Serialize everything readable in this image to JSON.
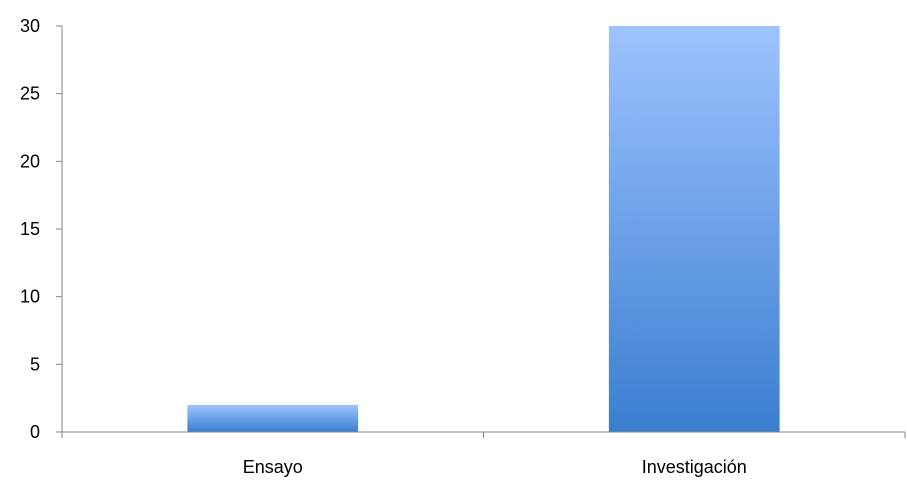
{
  "chart_data": {
    "type": "bar",
    "title": "",
    "xlabel": "",
    "ylabel": "",
    "categories": [
      "Ensayo",
      "Investigación"
    ],
    "values": [
      2,
      30
    ],
    "ylim": [
      0,
      30
    ],
    "yticks": [
      "0",
      "5",
      "10",
      "15",
      "20",
      "25",
      "30"
    ],
    "grid": false,
    "legend": "none",
    "colors": {
      "bar_top": "#9EC3FF",
      "bar_bottom": "#3A7ED0",
      "axis": "#868686"
    }
  }
}
